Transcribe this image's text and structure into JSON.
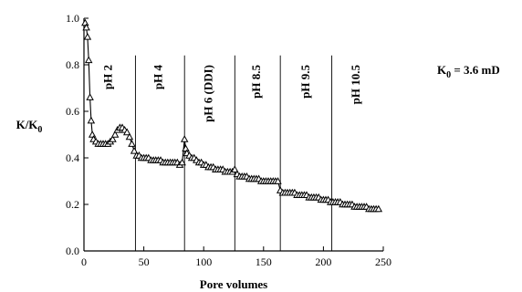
{
  "chart_data": {
    "type": "scatter",
    "title": "",
    "xlabel": "Pore volumes",
    "ylabel": {
      "main": "K/K",
      "sub": "0"
    },
    "annotation": {
      "prefix": "K",
      "sub": "0",
      "rest": " = 3.6 mD"
    },
    "xlim": [
      0,
      250
    ],
    "ylim": [
      0,
      1.0
    ],
    "xticks": [
      0,
      50,
      100,
      150,
      200,
      250
    ],
    "yticks": [
      0.0,
      0.2,
      0.4,
      0.6,
      0.8,
      1.0
    ],
    "ytick_labels": [
      "0.0",
      "0.2",
      "0.4",
      "0.6",
      "0.8",
      "1.0"
    ],
    "marker": "open-triangle",
    "grid": false,
    "boundaries": [
      43,
      84,
      126,
      164,
      207
    ],
    "regions": [
      {
        "label": "pH 2",
        "x": 21
      },
      {
        "label": "pH 4",
        "x": 63
      },
      {
        "label": "pH 6 (DDI)",
        "x": 105
      },
      {
        "label": "pH 8.5",
        "x": 145
      },
      {
        "label": "pH 9.5",
        "x": 186
      },
      {
        "label": "pH 10.5",
        "x": 228
      }
    ],
    "x": [
      1,
      2,
      3,
      4,
      5,
      6,
      7,
      8,
      10,
      12,
      14,
      16,
      18,
      20,
      22,
      24,
      26,
      28,
      30,
      32,
      34,
      36,
      38,
      40,
      42,
      44,
      46,
      48,
      50,
      52,
      54,
      56,
      58,
      60,
      62,
      64,
      66,
      68,
      70,
      72,
      74,
      76,
      78,
      80,
      82,
      84,
      85,
      86,
      88,
      90,
      92,
      94,
      96,
      98,
      100,
      102,
      104,
      106,
      108,
      110,
      112,
      114,
      116,
      118,
      120,
      122,
      124,
      126,
      128,
      130,
      132,
      134,
      136,
      138,
      140,
      142,
      144,
      146,
      148,
      150,
      152,
      154,
      156,
      158,
      160,
      162,
      164,
      166,
      168,
      170,
      172,
      174,
      176,
      178,
      180,
      182,
      184,
      186,
      188,
      190,
      192,
      194,
      196,
      198,
      200,
      202,
      204,
      206,
      208,
      210,
      212,
      214,
      216,
      218,
      220,
      222,
      224,
      226,
      228,
      230,
      232,
      234,
      236,
      238,
      240,
      242,
      244,
      246
    ],
    "y": [
      0.98,
      0.96,
      0.92,
      0.82,
      0.66,
      0.56,
      0.5,
      0.48,
      0.47,
      0.46,
      0.46,
      0.46,
      0.46,
      0.46,
      0.47,
      0.48,
      0.5,
      0.52,
      0.53,
      0.53,
      0.52,
      0.51,
      0.49,
      0.46,
      0.43,
      0.41,
      0.41,
      0.4,
      0.4,
      0.4,
      0.4,
      0.39,
      0.39,
      0.39,
      0.39,
      0.39,
      0.38,
      0.38,
      0.38,
      0.38,
      0.38,
      0.38,
      0.38,
      0.37,
      0.38,
      0.48,
      0.44,
      0.42,
      0.41,
      0.4,
      0.4,
      0.39,
      0.38,
      0.38,
      0.37,
      0.37,
      0.36,
      0.36,
      0.36,
      0.35,
      0.35,
      0.35,
      0.35,
      0.34,
      0.34,
      0.34,
      0.34,
      0.35,
      0.33,
      0.32,
      0.32,
      0.32,
      0.32,
      0.31,
      0.31,
      0.31,
      0.31,
      0.31,
      0.3,
      0.3,
      0.3,
      0.3,
      0.3,
      0.3,
      0.3,
      0.3,
      0.26,
      0.25,
      0.25,
      0.25,
      0.25,
      0.25,
      0.25,
      0.24,
      0.24,
      0.24,
      0.24,
      0.24,
      0.23,
      0.23,
      0.23,
      0.23,
      0.23,
      0.22,
      0.22,
      0.22,
      0.22,
      0.21,
      0.21,
      0.21,
      0.21,
      0.21,
      0.2,
      0.2,
      0.2,
      0.2,
      0.2,
      0.19,
      0.19,
      0.19,
      0.19,
      0.19,
      0.19,
      0.18,
      0.18,
      0.18,
      0.18,
      0.18
    ]
  }
}
